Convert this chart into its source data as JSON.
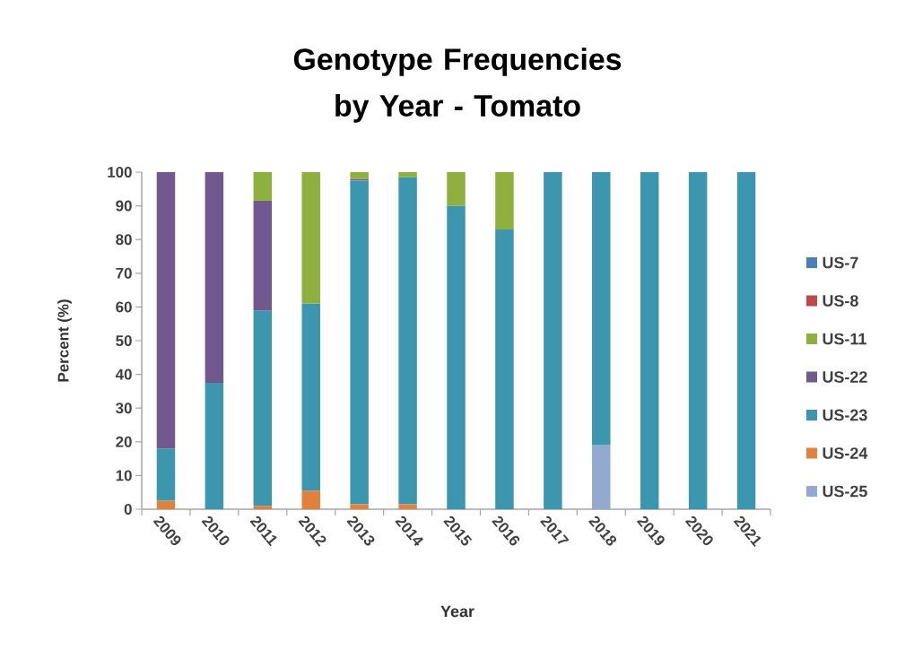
{
  "chart_data": {
    "type": "bar",
    "stacked": true,
    "title": "Genotype Frequencies by Year - Tomato",
    "xlabel": "Year",
    "ylabel": "Percent (%)",
    "categories": [
      "2009",
      "2010",
      "2011",
      "2012",
      "2013",
      "2014",
      "2015",
      "2016",
      "2017",
      "2018",
      "2019",
      "2020",
      "2021"
    ],
    "series": [
      {
        "name": "US-25",
        "color": "#93a9cf",
        "values": [
          null,
          null,
          null,
          null,
          null,
          null,
          null,
          null,
          null,
          19,
          null,
          null,
          null
        ]
      },
      {
        "name": "US-24",
        "color": "#e0823d",
        "values": [
          2.5,
          null,
          1,
          5.5,
          1.5,
          1.5,
          null,
          null,
          null,
          null,
          null,
          null,
          null
        ]
      },
      {
        "name": "US-23",
        "color": "#3c97ae",
        "values": [
          15.5,
          37.5,
          58,
          55.5,
          96,
          97,
          90,
          83,
          100,
          81,
          100,
          100,
          100
        ]
      },
      {
        "name": "US-22",
        "color": "#71588f",
        "values": [
          82,
          62.5,
          32.5,
          null,
          0.5,
          null,
          null,
          null,
          null,
          null,
          null,
          null,
          null
        ]
      },
      {
        "name": "US-11",
        "color": "#8eb03e",
        "values": [
          null,
          null,
          8.5,
          39,
          2,
          1.5,
          10,
          17,
          null,
          null,
          null,
          null,
          null
        ]
      },
      {
        "name": "US-8",
        "color": "#be4b48",
        "values": [
          null,
          null,
          null,
          null,
          null,
          null,
          null,
          null,
          null,
          null,
          null,
          null,
          null
        ]
      },
      {
        "name": "US-7",
        "color": "#4a7ebb",
        "values": [
          null,
          null,
          null,
          null,
          null,
          null,
          null,
          null,
          null,
          null,
          null,
          null,
          null
        ]
      }
    ],
    "ylim": [
      0,
      100
    ],
    "yticks": [
      0,
      10,
      20,
      30,
      40,
      50,
      60,
      70,
      80,
      90,
      100
    ],
    "grid": false,
    "legend": "right"
  }
}
